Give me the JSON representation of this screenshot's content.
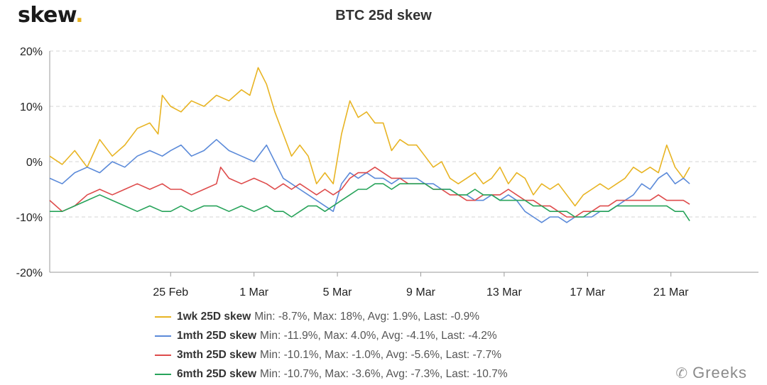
{
  "header": {
    "logo_text": "skew",
    "logo_dot": "."
  },
  "chart_data": {
    "type": "line",
    "title": "BTC 25d skew",
    "xlabel": "",
    "ylabel": "",
    "ylim": [
      -20,
      20
    ],
    "yticks": [
      "20%",
      "10%",
      "0%",
      "-10%",
      "-20%"
    ],
    "ytick_values": [
      20,
      10,
      0,
      -10,
      -20
    ],
    "xlim_days": [
      -5.8,
      28.2
    ],
    "xtick_labels": [
      "25 Feb",
      "1 Mar",
      "5 Mar",
      "9 Mar",
      "13 Mar",
      "17 Mar",
      "21 Mar"
    ],
    "xtick_days": [
      0,
      4,
      8,
      12,
      16,
      20,
      24
    ],
    "grid": true,
    "legend_position": "bottom",
    "series": [
      {
        "name": "1wk 25D skew",
        "color": "#e8b423",
        "stats": "Min: -8.7%, Max: 18%, Avg: 1.9%, Last: -0.9%",
        "points": [
          [
            -5.8,
            1
          ],
          [
            -5.2,
            -0.5
          ],
          [
            -4.6,
            2
          ],
          [
            -4.0,
            -1
          ],
          [
            -3.4,
            4
          ],
          [
            -2.8,
            1
          ],
          [
            -2.2,
            3
          ],
          [
            -1.6,
            6
          ],
          [
            -1.0,
            7
          ],
          [
            -0.6,
            5
          ],
          [
            -0.4,
            12
          ],
          [
            0,
            10
          ],
          [
            0.5,
            9
          ],
          [
            1.0,
            11
          ],
          [
            1.6,
            10
          ],
          [
            2.2,
            12
          ],
          [
            2.8,
            11
          ],
          [
            3.4,
            13
          ],
          [
            3.8,
            12
          ],
          [
            4.2,
            17
          ],
          [
            4.6,
            14
          ],
          [
            5.0,
            9
          ],
          [
            5.4,
            5
          ],
          [
            5.8,
            1
          ],
          [
            6.2,
            3
          ],
          [
            6.6,
            1
          ],
          [
            7.0,
            -4
          ],
          [
            7.4,
            -2
          ],
          [
            7.8,
            -4
          ],
          [
            8.2,
            5
          ],
          [
            8.6,
            11
          ],
          [
            9.0,
            8
          ],
          [
            9.4,
            9
          ],
          [
            9.8,
            7
          ],
          [
            10.2,
            7
          ],
          [
            10.6,
            2
          ],
          [
            11.0,
            4
          ],
          [
            11.4,
            3
          ],
          [
            11.8,
            3
          ],
          [
            12.2,
            1
          ],
          [
            12.6,
            -1
          ],
          [
            13.0,
            0
          ],
          [
            13.4,
            -3
          ],
          [
            13.8,
            -4
          ],
          [
            14.2,
            -3
          ],
          [
            14.6,
            -2
          ],
          [
            15.0,
            -4
          ],
          [
            15.4,
            -3
          ],
          [
            15.8,
            -1
          ],
          [
            16.2,
            -4
          ],
          [
            16.6,
            -2
          ],
          [
            17.0,
            -3
          ],
          [
            17.4,
            -6
          ],
          [
            17.8,
            -4
          ],
          [
            18.2,
            -5
          ],
          [
            18.6,
            -4
          ],
          [
            19.0,
            -6
          ],
          [
            19.4,
            -8
          ],
          [
            19.8,
            -6
          ],
          [
            20.2,
            -5
          ],
          [
            20.6,
            -4
          ],
          [
            21.0,
            -5
          ],
          [
            21.4,
            -4
          ],
          [
            21.8,
            -3
          ],
          [
            22.2,
            -1
          ],
          [
            22.6,
            -2
          ],
          [
            23.0,
            -1
          ],
          [
            23.4,
            -2
          ],
          [
            23.8,
            3
          ],
          [
            24.2,
            -1
          ],
          [
            24.6,
            -3
          ],
          [
            24.9,
            -1
          ]
        ]
      },
      {
        "name": "1mth 25D skew",
        "color": "#5b8ad9",
        "stats": "Min: -11.9%, Max: 4.0%, Avg: -4.1%, Last: -4.2%",
        "points": [
          [
            -5.8,
            -3
          ],
          [
            -5.2,
            -4
          ],
          [
            -4.6,
            -2
          ],
          [
            -4.0,
            -1
          ],
          [
            -3.4,
            -2
          ],
          [
            -2.8,
            0
          ],
          [
            -2.2,
            -1
          ],
          [
            -1.6,
            1
          ],
          [
            -1.0,
            2
          ],
          [
            -0.4,
            1
          ],
          [
            0,
            2
          ],
          [
            0.5,
            3
          ],
          [
            1.0,
            1
          ],
          [
            1.6,
            2
          ],
          [
            2.2,
            4
          ],
          [
            2.8,
            2
          ],
          [
            3.4,
            1
          ],
          [
            4.0,
            0
          ],
          [
            4.6,
            3
          ],
          [
            5.0,
            0
          ],
          [
            5.4,
            -3
          ],
          [
            5.8,
            -4
          ],
          [
            6.2,
            -5
          ],
          [
            6.6,
            -6
          ],
          [
            7.0,
            -7
          ],
          [
            7.4,
            -8
          ],
          [
            7.8,
            -9
          ],
          [
            8.2,
            -4
          ],
          [
            8.6,
            -2
          ],
          [
            9.0,
            -3
          ],
          [
            9.4,
            -2
          ],
          [
            9.8,
            -3
          ],
          [
            10.2,
            -3
          ],
          [
            10.6,
            -4
          ],
          [
            11.0,
            -3
          ],
          [
            11.4,
            -3
          ],
          [
            11.8,
            -3
          ],
          [
            12.2,
            -4
          ],
          [
            12.6,
            -4
          ],
          [
            13.0,
            -5
          ],
          [
            13.4,
            -5
          ],
          [
            13.8,
            -6
          ],
          [
            14.2,
            -6
          ],
          [
            14.6,
            -7
          ],
          [
            15.0,
            -7
          ],
          [
            15.4,
            -6
          ],
          [
            15.8,
            -7
          ],
          [
            16.2,
            -6
          ],
          [
            16.6,
            -7
          ],
          [
            17.0,
            -9
          ],
          [
            17.4,
            -10
          ],
          [
            17.8,
            -11
          ],
          [
            18.2,
            -10
          ],
          [
            18.6,
            -10
          ],
          [
            19.0,
            -11
          ],
          [
            19.4,
            -10
          ],
          [
            19.8,
            -10
          ],
          [
            20.2,
            -10
          ],
          [
            20.6,
            -9
          ],
          [
            21.0,
            -9
          ],
          [
            21.4,
            -8
          ],
          [
            21.8,
            -7
          ],
          [
            22.2,
            -6
          ],
          [
            22.6,
            -4
          ],
          [
            23.0,
            -5
          ],
          [
            23.4,
            -3
          ],
          [
            23.8,
            -2
          ],
          [
            24.2,
            -4
          ],
          [
            24.6,
            -3
          ],
          [
            24.9,
            -4
          ]
        ]
      },
      {
        "name": "3mth 25D skew",
        "color": "#de4b4b",
        "stats": "Min: -10.1%, Max: -1.0%, Avg: -5.6%, Last: -7.7%",
        "points": [
          [
            -5.8,
            -7
          ],
          [
            -5.2,
            -9
          ],
          [
            -4.6,
            -8
          ],
          [
            -4.0,
            -6
          ],
          [
            -3.4,
            -5
          ],
          [
            -2.8,
            -6
          ],
          [
            -2.2,
            -5
          ],
          [
            -1.6,
            -4
          ],
          [
            -1.0,
            -5
          ],
          [
            -0.4,
            -4
          ],
          [
            0,
            -5
          ],
          [
            0.5,
            -5
          ],
          [
            1.0,
            -6
          ],
          [
            1.6,
            -5
          ],
          [
            2.2,
            -4
          ],
          [
            2.4,
            -1
          ],
          [
            2.8,
            -3
          ],
          [
            3.4,
            -4
          ],
          [
            4.0,
            -3
          ],
          [
            4.6,
            -4
          ],
          [
            5.0,
            -5
          ],
          [
            5.4,
            -4
          ],
          [
            5.8,
            -5
          ],
          [
            6.2,
            -4
          ],
          [
            6.6,
            -5
          ],
          [
            7.0,
            -6
          ],
          [
            7.4,
            -5
          ],
          [
            7.8,
            -6
          ],
          [
            8.2,
            -5
          ],
          [
            8.6,
            -3
          ],
          [
            9.0,
            -2
          ],
          [
            9.4,
            -2
          ],
          [
            9.8,
            -1
          ],
          [
            10.2,
            -2
          ],
          [
            10.6,
            -3
          ],
          [
            11.0,
            -3
          ],
          [
            11.4,
            -4
          ],
          [
            11.8,
            -4
          ],
          [
            12.2,
            -4
          ],
          [
            12.6,
            -5
          ],
          [
            13.0,
            -5
          ],
          [
            13.4,
            -6
          ],
          [
            13.8,
            -6
          ],
          [
            14.2,
            -7
          ],
          [
            14.6,
            -7
          ],
          [
            15.0,
            -6
          ],
          [
            15.4,
            -6
          ],
          [
            15.8,
            -6
          ],
          [
            16.2,
            -5
          ],
          [
            16.6,
            -6
          ],
          [
            17.0,
            -7
          ],
          [
            17.4,
            -7
          ],
          [
            17.8,
            -8
          ],
          [
            18.2,
            -8
          ],
          [
            18.6,
            -9
          ],
          [
            19.0,
            -10
          ],
          [
            19.4,
            -10
          ],
          [
            19.8,
            -9
          ],
          [
            20.2,
            -9
          ],
          [
            20.6,
            -8
          ],
          [
            21.0,
            -8
          ],
          [
            21.4,
            -7
          ],
          [
            21.8,
            -7
          ],
          [
            22.2,
            -7
          ],
          [
            22.6,
            -7
          ],
          [
            23.0,
            -7
          ],
          [
            23.4,
            -6
          ],
          [
            23.8,
            -7
          ],
          [
            24.2,
            -7
          ],
          [
            24.6,
            -7
          ],
          [
            24.9,
            -7.7
          ]
        ]
      },
      {
        "name": "6mth 25D skew",
        "color": "#27a35a",
        "stats": "Min: -10.7%, Max: -3.6%, Avg: -7.3%, Last: -10.7%",
        "points": [
          [
            -5.8,
            -9
          ],
          [
            -5.2,
            -9
          ],
          [
            -4.6,
            -8
          ],
          [
            -4.0,
            -7
          ],
          [
            -3.4,
            -6
          ],
          [
            -2.8,
            -7
          ],
          [
            -2.2,
            -8
          ],
          [
            -1.6,
            -9
          ],
          [
            -1.0,
            -8
          ],
          [
            -0.4,
            -9
          ],
          [
            0,
            -9
          ],
          [
            0.5,
            -8
          ],
          [
            1.0,
            -9
          ],
          [
            1.6,
            -8
          ],
          [
            2.2,
            -8
          ],
          [
            2.8,
            -9
          ],
          [
            3.4,
            -8
          ],
          [
            4.0,
            -9
          ],
          [
            4.6,
            -8
          ],
          [
            5.0,
            -9
          ],
          [
            5.4,
            -9
          ],
          [
            5.8,
            -10
          ],
          [
            6.2,
            -9
          ],
          [
            6.6,
            -8
          ],
          [
            7.0,
            -8
          ],
          [
            7.4,
            -9
          ],
          [
            7.8,
            -8
          ],
          [
            8.2,
            -7
          ],
          [
            8.6,
            -6
          ],
          [
            9.0,
            -5
          ],
          [
            9.4,
            -5
          ],
          [
            9.8,
            -4
          ],
          [
            10.2,
            -4
          ],
          [
            10.6,
            -5
          ],
          [
            11.0,
            -4
          ],
          [
            11.4,
            -4
          ],
          [
            11.8,
            -4
          ],
          [
            12.2,
            -4
          ],
          [
            12.6,
            -5
          ],
          [
            13.0,
            -5
          ],
          [
            13.4,
            -5
          ],
          [
            13.8,
            -6
          ],
          [
            14.2,
            -6
          ],
          [
            14.6,
            -5
          ],
          [
            15.0,
            -6
          ],
          [
            15.4,
            -6
          ],
          [
            15.8,
            -7
          ],
          [
            16.2,
            -7
          ],
          [
            16.6,
            -7
          ],
          [
            17.0,
            -7
          ],
          [
            17.4,
            -8
          ],
          [
            17.8,
            -8
          ],
          [
            18.2,
            -9
          ],
          [
            18.6,
            -9
          ],
          [
            19.0,
            -9
          ],
          [
            19.4,
            -10
          ],
          [
            19.8,
            -10
          ],
          [
            20.2,
            -9
          ],
          [
            20.6,
            -9
          ],
          [
            21.0,
            -9
          ],
          [
            21.4,
            -8
          ],
          [
            21.8,
            -8
          ],
          [
            22.2,
            -8
          ],
          [
            22.6,
            -8
          ],
          [
            23.0,
            -8
          ],
          [
            23.4,
            -8
          ],
          [
            23.8,
            -8
          ],
          [
            24.2,
            -9
          ],
          [
            24.6,
            -9
          ],
          [
            24.9,
            -10.7
          ]
        ]
      }
    ]
  },
  "watermark": {
    "text": "Greeks"
  }
}
